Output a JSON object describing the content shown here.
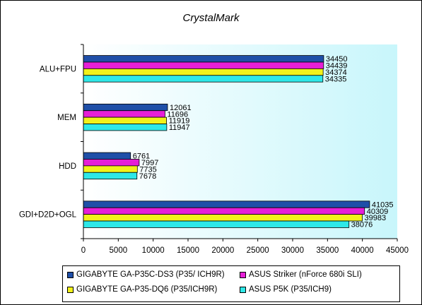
{
  "chart_data": {
    "type": "bar",
    "orientation": "horizontal",
    "title": "CrystalMark",
    "categories": [
      "ALU+FPU",
      "MEM",
      "HDD",
      "GDI+D2D+OGL"
    ],
    "series": [
      {
        "name": "GIGABYTE GA-P35C-DS3 (P35/ ICH9R)",
        "color": "#1f4fa8",
        "values": [
          34450,
          12061,
          6761,
          41035
        ]
      },
      {
        "name": "ASUS Striker (nForce 680i SLI)",
        "color": "#e61fd7",
        "values": [
          34439,
          11696,
          7997,
          40309
        ]
      },
      {
        "name": "GIGABYTE GA-P35-DQ6 (P35/ICH9R)",
        "color": "#f2f21a",
        "values": [
          34374,
          11919,
          7735,
          39983
        ]
      },
      {
        "name": "ASUS P5K (P35/ICH9)",
        "color": "#2ee8e8",
        "values": [
          34335,
          11947,
          7678,
          38076
        ]
      }
    ],
    "xlim": [
      0,
      45000
    ],
    "xticks": [
      "0",
      "5000",
      "10000",
      "15000",
      "20000",
      "25000",
      "30000",
      "35000",
      "40000",
      "45000"
    ],
    "grid": false,
    "legend_position": "bottom",
    "plot_background": "gradient white to light cyan"
  }
}
